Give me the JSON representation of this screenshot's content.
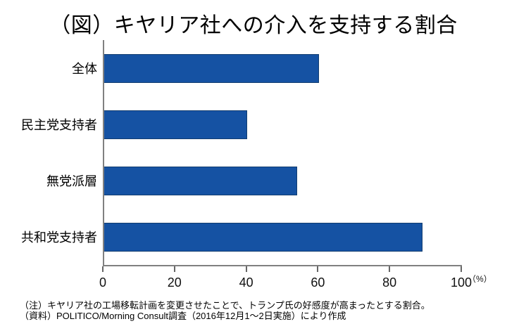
{
  "title": "（図）キヤリア社への介入を支持する割合",
  "chart_data": {
    "type": "bar",
    "orientation": "horizontal",
    "title": "（図）キヤリア社への介入を支持する割合",
    "categories": [
      "全体",
      "民主党支持者",
      "無党派層",
      "共和党支持者"
    ],
    "values": [
      60,
      40,
      54,
      89
    ],
    "xlabel": "",
    "ylabel": "",
    "xlim": [
      0,
      100
    ],
    "x_ticks": [
      0,
      20,
      40,
      60,
      80,
      100
    ],
    "unit_label": "（%）",
    "grid": false,
    "legend_visible": false,
    "bar_color": "#1552a3",
    "bar_border_color": "#123d70",
    "axis_color": "#808080"
  },
  "notes": {
    "line1": "（注）キヤリア社の工場移転計画を変更させたことで、トランプ氏の好感度が高まったとする割合。",
    "line2": "（資料）POLITICO/Morning Consult調査（2016年12月1～2日実施）により作成"
  }
}
